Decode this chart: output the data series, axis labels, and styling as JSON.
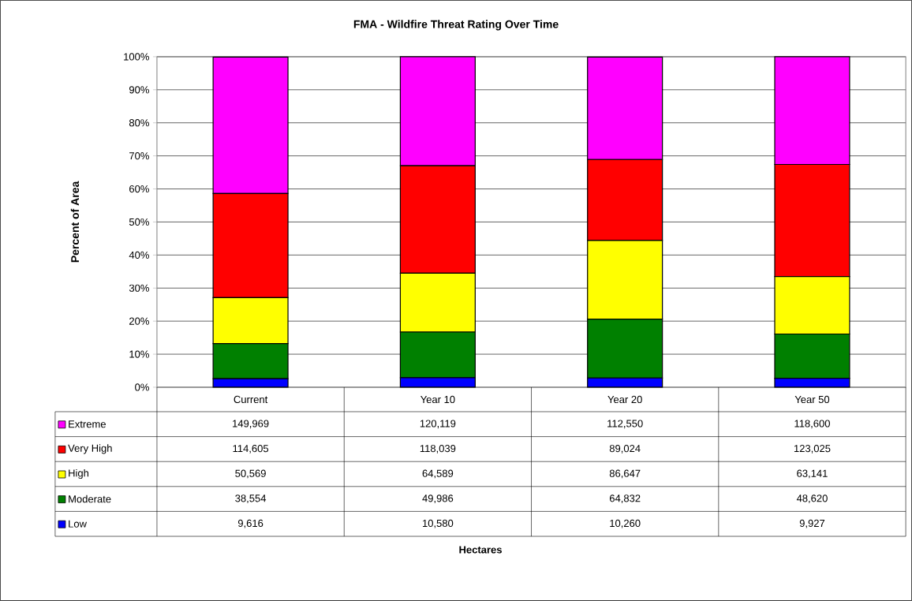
{
  "chart_data": {
    "type": "bar",
    "title": "FMA - Wildfire Threat Rating Over Time",
    "ylabel": "Percent of Area",
    "categories": [
      "Current",
      "Year 10",
      "Year 20",
      "Year 50"
    ],
    "stacked": true,
    "grid": "y",
    "legend": "bottom",
    "ylim": [
      0,
      100
    ],
    "yticks": [
      {
        "value": 0,
        "label": "0%"
      },
      {
        "value": 10,
        "label": "10%"
      },
      {
        "value": 20,
        "label": "20%"
      },
      {
        "value": 30,
        "label": "30%"
      },
      {
        "value": 40,
        "label": "40%"
      },
      {
        "value": 50,
        "label": "50%"
      },
      {
        "value": 60,
        "label": "60%"
      },
      {
        "value": 70,
        "label": "70%"
      },
      {
        "value": 80,
        "label": "80%"
      },
      {
        "value": 90,
        "label": "90%"
      },
      {
        "value": 100,
        "label": "100%"
      }
    ],
    "series": [
      {
        "name": "Low",
        "color": "#0000ff",
        "values": [
          2.6,
          2.9,
          2.8,
          2.7
        ]
      },
      {
        "name": "Moderate",
        "color": "#008000",
        "values": [
          10.6,
          13.8,
          17.8,
          13.4
        ]
      },
      {
        "name": "High",
        "color": "#ffff00",
        "values": [
          13.9,
          17.8,
          23.8,
          17.4
        ]
      },
      {
        "name": "Very High",
        "color": "#ff0000",
        "values": [
          31.5,
          32.5,
          24.5,
          33.9
        ]
      },
      {
        "name": "Extreme",
        "color": "#ff00ff",
        "values": [
          41.3,
          33.0,
          31.0,
          32.6
        ]
      }
    ],
    "annotations": [
      "149,969",
      "120,119",
      "112,550",
      "118,600",
      "114,605",
      "118,039",
      "89,024",
      "123,025",
      "50,569",
      "64,589",
      "86,647",
      "63,141",
      "38,554",
      "49,986",
      "64,832",
      "48,620",
      "9,616",
      "10,580",
      "10,260",
      "9,927",
      "Hectares"
    ]
  }
}
